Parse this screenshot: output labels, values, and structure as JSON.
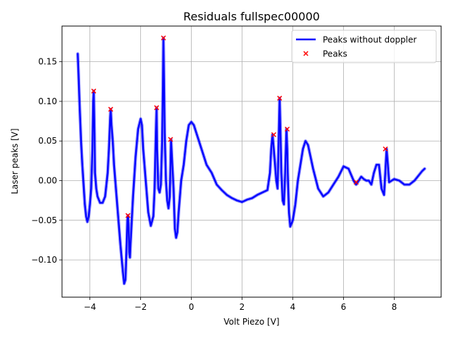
{
  "chart_data": {
    "type": "line",
    "title": "Residuals fullspec00000",
    "xlabel": "Volt Piezo [V]",
    "ylabel": "Laser peaks [V]",
    "xlim": [
      -5.1,
      9.85
    ],
    "ylim": [
      -0.147,
      0.195
    ],
    "xticks": [
      -4,
      -2,
      0,
      2,
      4,
      6,
      8
    ],
    "xtick_labels": [
      "−4",
      "−2",
      "0",
      "2",
      "4",
      "6",
      "8"
    ],
    "yticks": [
      -0.1,
      -0.05,
      0.0,
      0.05,
      0.1,
      0.15
    ],
    "ytick_labels": [
      "−0.10",
      "−0.05",
      "0.00",
      "0.05",
      "0.10",
      "0.15"
    ],
    "grid": true,
    "legend_position": "top-right",
    "series": [
      {
        "name": "Peaks without doppler",
        "kind": "line",
        "color": "#0000ff",
        "x": [
          -4.48,
          -4.45,
          -4.4,
          -4.35,
          -4.3,
          -4.25,
          -4.2,
          -4.15,
          -4.1,
          -4.05,
          -4.0,
          -3.95,
          -3.9,
          -3.87,
          -3.85,
          -3.82,
          -3.8,
          -3.75,
          -3.7,
          -3.6,
          -3.5,
          -3.4,
          -3.3,
          -3.25,
          -3.2,
          -3.18,
          -3.15,
          -3.1,
          -3.05,
          -3.0,
          -2.9,
          -2.8,
          -2.7,
          -2.65,
          -2.6,
          -2.55,
          -2.52,
          -2.5,
          -2.47,
          -2.45,
          -2.42,
          -2.4,
          -2.35,
          -2.3,
          -2.2,
          -2.1,
          -2.0,
          -1.95,
          -1.9,
          -1.8,
          -1.7,
          -1.6,
          -1.5,
          -1.45,
          -1.4,
          -1.37,
          -1.35,
          -1.3,
          -1.25,
          -1.2,
          -1.15,
          -1.12,
          -1.1,
          -1.08,
          -1.05,
          -1.0,
          -0.95,
          -0.9,
          -0.85,
          -0.82,
          -0.8,
          -0.75,
          -0.7,
          -0.65,
          -0.6,
          -0.55,
          -0.5,
          -0.45,
          -0.4,
          -0.3,
          -0.2,
          -0.1,
          0.0,
          0.1,
          0.2,
          0.3,
          0.4,
          0.5,
          0.6,
          0.8,
          1.0,
          1.2,
          1.4,
          1.6,
          1.8,
          2.0,
          2.2,
          2.4,
          2.6,
          2.8,
          3.0,
          3.1,
          3.15,
          3.2,
          3.25,
          3.3,
          3.35,
          3.4,
          3.45,
          3.48,
          3.5,
          3.55,
          3.6,
          3.65,
          3.7,
          3.75,
          3.78,
          3.8,
          3.85,
          3.9,
          4.0,
          4.1,
          4.2,
          4.3,
          4.4,
          4.5,
          4.6,
          4.7,
          4.8,
          5.0,
          5.2,
          5.4,
          5.6,
          5.8,
          6.0,
          6.2,
          6.4,
          6.5,
          6.6,
          6.7,
          6.8,
          6.9,
          7.0,
          7.1,
          7.2,
          7.3,
          7.4,
          7.5,
          7.6,
          7.65,
          7.7,
          7.75,
          7.8,
          7.9,
          8.0,
          8.2,
          8.4,
          8.6,
          8.8,
          9.0,
          9.1,
          9.2
        ],
        "y": [
          0.16,
          0.135,
          0.09,
          0.05,
          0.02,
          -0.005,
          -0.03,
          -0.045,
          -0.052,
          -0.045,
          -0.03,
          -0.01,
          0.04,
          0.1,
          0.113,
          0.06,
          0.01,
          -0.01,
          -0.02,
          -0.028,
          -0.028,
          -0.02,
          0.01,
          0.04,
          0.08,
          0.09,
          0.07,
          0.05,
          0.02,
          0.0,
          -0.04,
          -0.08,
          -0.115,
          -0.13,
          -0.125,
          -0.08,
          -0.05,
          -0.044,
          -0.06,
          -0.09,
          -0.097,
          -0.08,
          -0.05,
          -0.02,
          0.03,
          0.065,
          0.078,
          0.07,
          0.04,
          0.0,
          -0.04,
          -0.057,
          -0.045,
          -0.01,
          0.06,
          0.092,
          0.04,
          -0.01,
          -0.015,
          -0.005,
          0.05,
          0.12,
          0.18,
          0.13,
          0.06,
          0.0,
          -0.025,
          -0.035,
          -0.02,
          0.02,
          0.052,
          0.02,
          -0.01,
          -0.06,
          -0.072,
          -0.065,
          -0.04,
          -0.02,
          0.0,
          0.02,
          0.05,
          0.07,
          0.074,
          0.07,
          0.06,
          0.05,
          0.04,
          0.03,
          0.02,
          0.01,
          -0.005,
          -0.012,
          -0.018,
          -0.022,
          -0.025,
          -0.027,
          -0.024,
          -0.022,
          -0.018,
          -0.015,
          -0.012,
          0.01,
          0.04,
          0.058,
          0.04,
          0.02,
          0.0,
          -0.01,
          0.06,
          0.104,
          0.08,
          0.01,
          -0.025,
          -0.03,
          0.01,
          0.065,
          0.04,
          0.01,
          -0.04,
          -0.058,
          -0.05,
          -0.03,
          0.0,
          0.02,
          0.04,
          0.05,
          0.045,
          0.03,
          0.015,
          -0.01,
          -0.02,
          -0.015,
          -0.005,
          0.005,
          0.018,
          0.015,
          0.0,
          -0.005,
          0.0,
          0.005,
          0.002,
          0.0,
          0.0,
          -0.005,
          0.01,
          0.02,
          0.02,
          -0.01,
          -0.018,
          0.01,
          0.04,
          0.02,
          -0.002,
          0.0,
          0.002,
          0.0,
          -0.005,
          -0.005,
          0.0,
          0.008,
          0.012,
          0.015
        ]
      },
      {
        "name": "Peaks",
        "kind": "scatter",
        "marker": "x",
        "color": "#ff0000",
        "x": [
          -3.85,
          -3.18,
          -2.5,
          -1.37,
          -1.1,
          -0.82,
          3.25,
          3.48,
          3.78,
          6.5,
          7.65
        ],
        "y": [
          0.113,
          0.09,
          -0.044,
          0.092,
          0.18,
          0.052,
          0.058,
          0.104,
          0.065,
          -0.002,
          0.04
        ]
      }
    ]
  }
}
